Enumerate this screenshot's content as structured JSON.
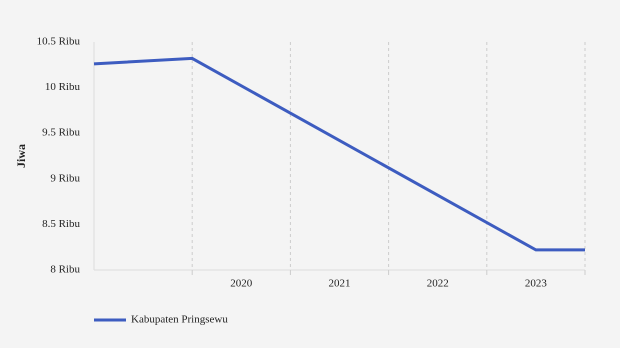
{
  "chart_data": {
    "type": "line",
    "y_label": "Jiwa",
    "x": [
      2019,
      2020,
      2023.5,
      2024
    ],
    "series": [
      {
        "name": "Kabupaten Pringsewu",
        "color": "#3d5cc0",
        "values": [
          10.26,
          10.32,
          8.22,
          8.22
        ]
      }
    ],
    "xlim": [
      2019,
      2024
    ],
    "xticks": [
      {
        "value": 2020,
        "label": "2020"
      },
      {
        "value": 2021,
        "label": "2021"
      },
      {
        "value": 2022,
        "label": "2022"
      },
      {
        "value": 2023,
        "label": "2023"
      },
      {
        "value": 2024,
        "label": null
      }
    ],
    "ylim": [
      8,
      10.5
    ],
    "yticks": [
      {
        "value": 8,
        "label": "8 Ribu"
      },
      {
        "value": 8.5,
        "label": "8.5 Ribu"
      },
      {
        "value": 9,
        "label": "9 Ribu"
      },
      {
        "value": 9.5,
        "label": "9.5 Ribu"
      },
      {
        "value": 10,
        "label": "10 Ribu"
      },
      {
        "value": 10.5,
        "label": "10.5 Ribu"
      }
    ],
    "grid": true
  }
}
